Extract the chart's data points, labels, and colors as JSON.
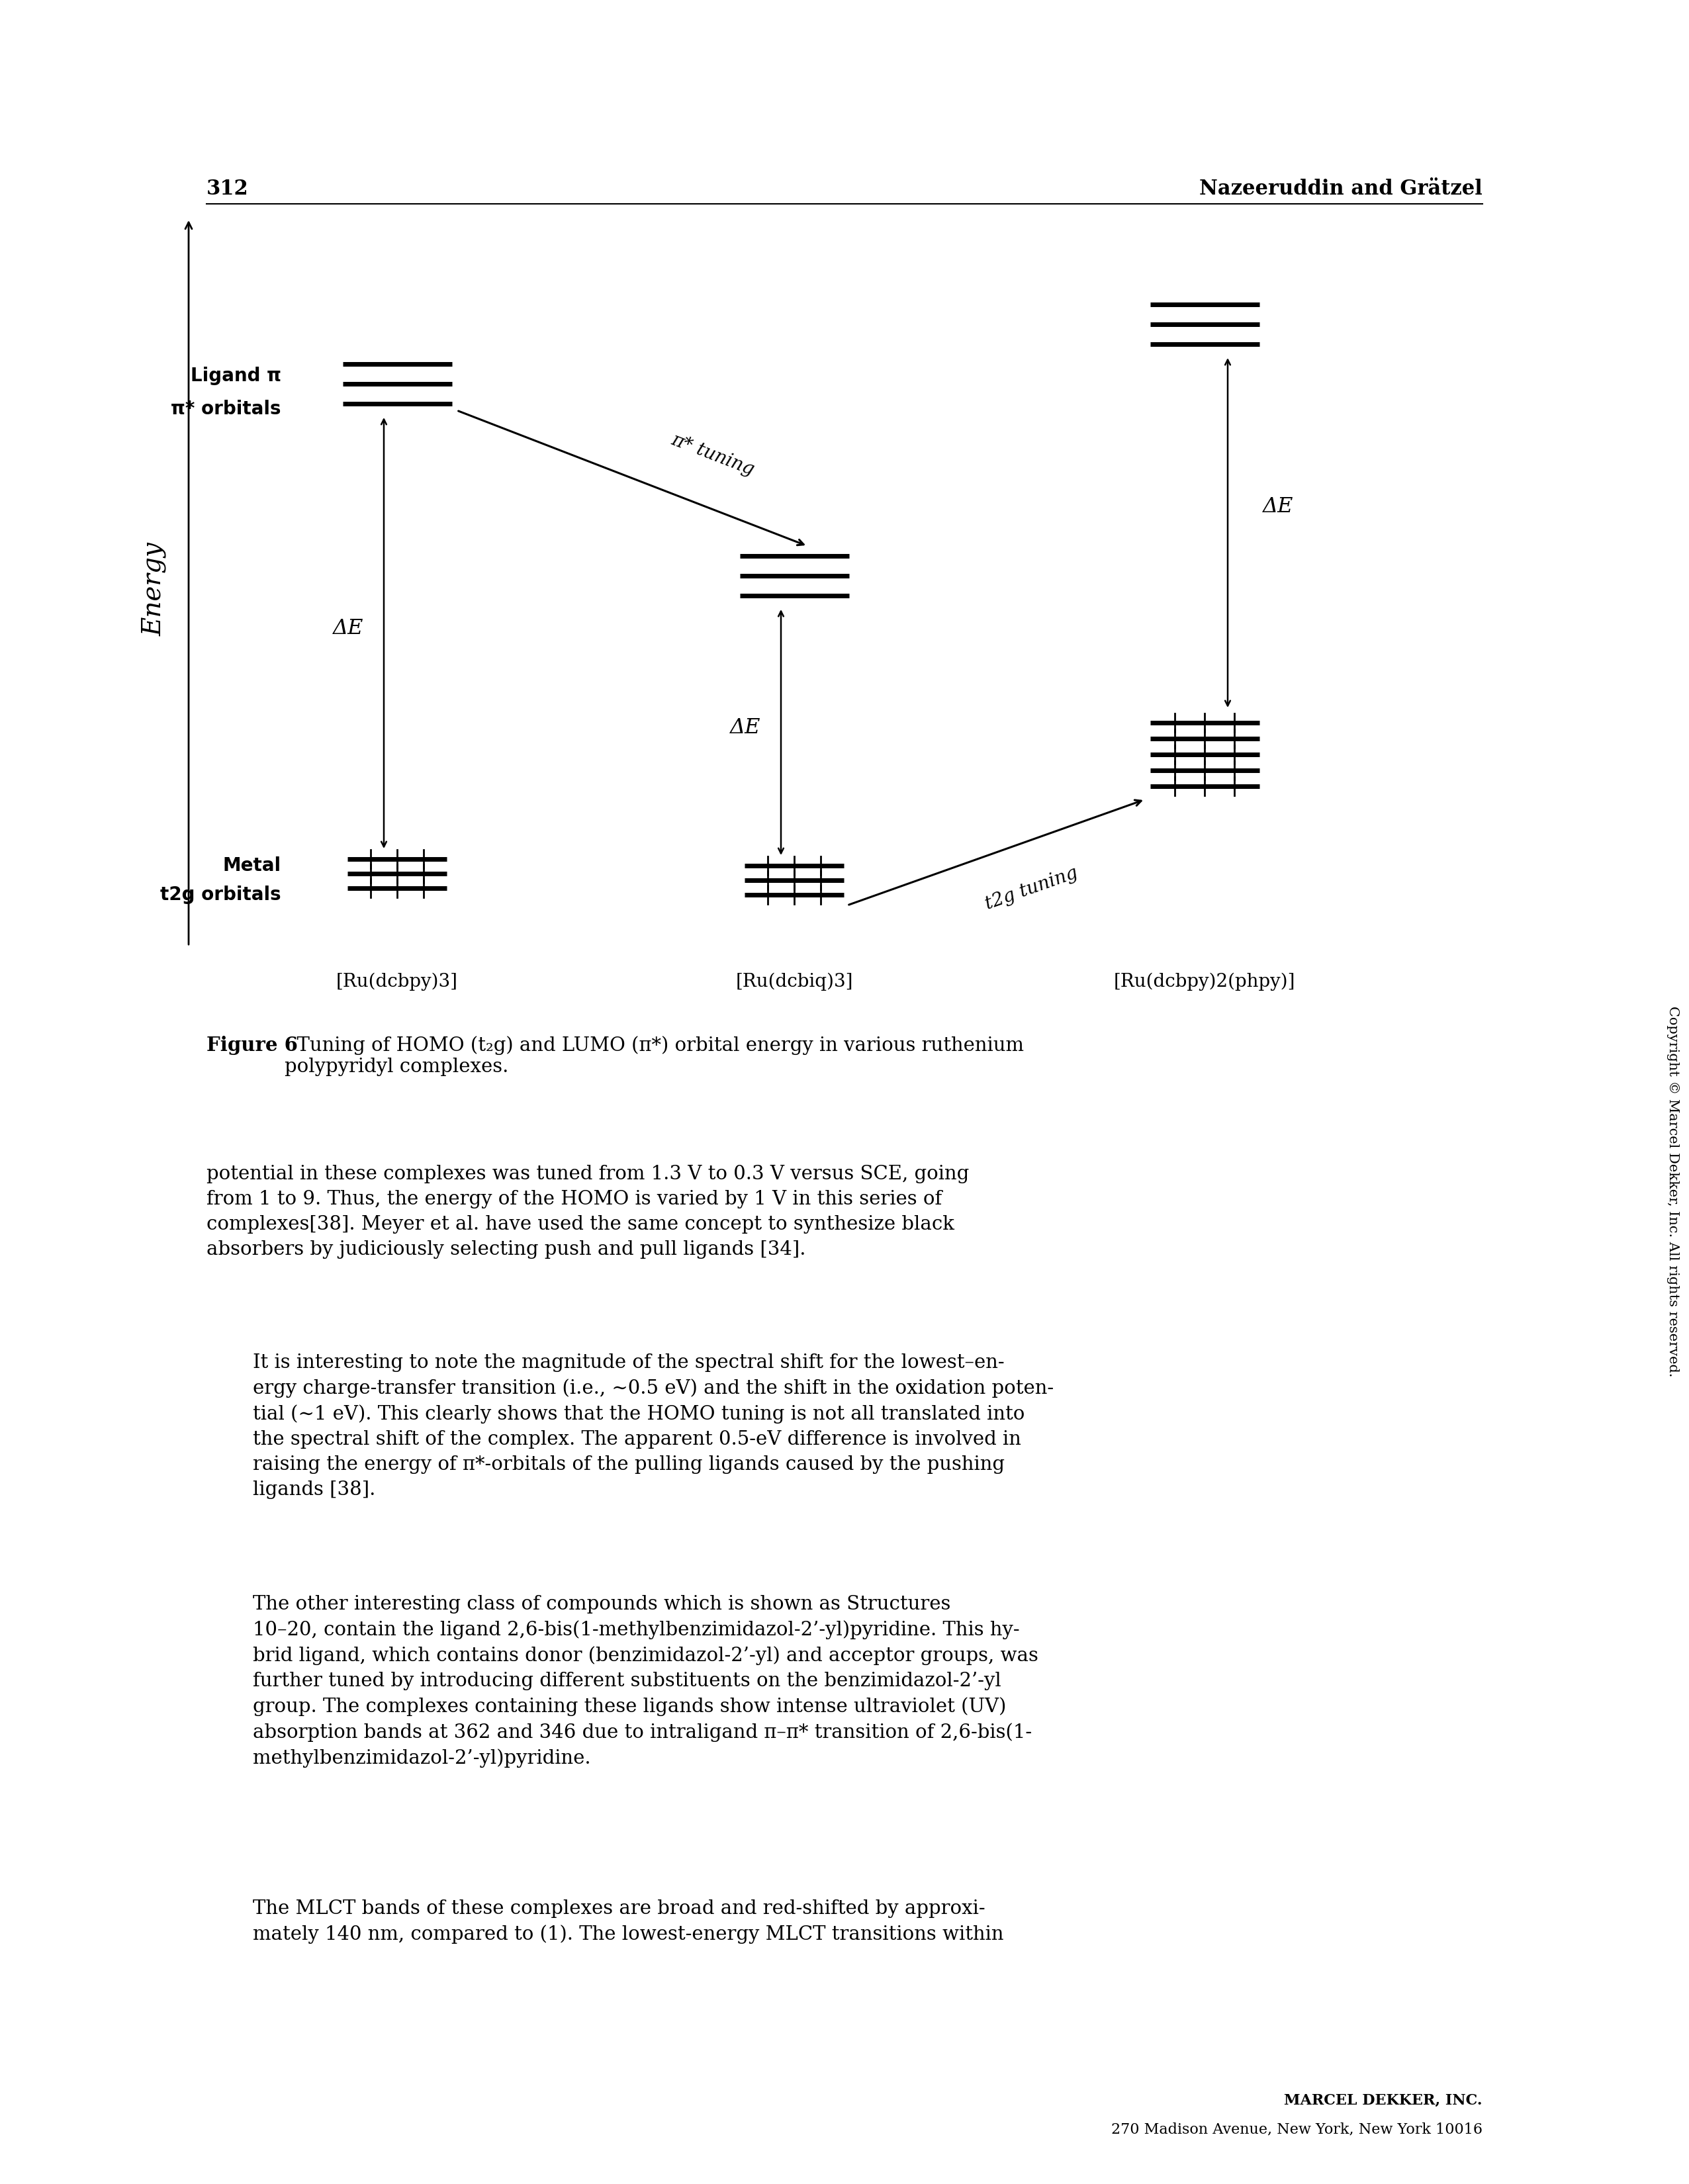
{
  "page_number": "312",
  "header_right": "Nazeeruddin and Grätzel",
  "energy_label": "Energy",
  "col1_label": "[Ru(dcbpy)3]",
  "col2_label": "[Ru(dcbiq)3]",
  "col3_label": "[Ru(dcbpy)2(phpy)]",
  "ligand_label_line1": "Ligand π",
  "ligand_label_line2": "π* orbitals",
  "metal_label_line1": "Metal",
  "metal_label_line2": "t2g orbitals",
  "delta_e_label": "ΔE",
  "pi_tuning_label": "π* tuning",
  "t2g_tuning_label": "t2g tuning",
  "figure_caption_bold": "Figure 6",
  "figure_caption_rest": "   Tuning of HOMO (t2g) and LUMO (π*) orbital energy in various ruthenium\npolypyridyl complexes.",
  "body_paragraphs": [
    "potential in these complexes was tuned from 1.3 V to 0.3 V versus SCE, going\nfrom 1 to 9. Thus, the energy of the HOMO is varied by 1 V in this series of\ncomplexes[38]. Meyer et al. have used the same concept to synthesize black\nabsorbers by judiciously selecting push and pull ligands [34].",
    "It is interesting to note the magnitude of the spectral shift for the lowest–en-\nergy charge-transfer transition (i.e., ∼0.5 eV) and the shift in the oxidation poten-\ntial (∼1 eV). This clearly shows that the HOMO tuning is not all translated into\nthe spectral shift of the complex. The apparent 0.5-eV difference is involved in\nraising the energy of π*-orbitals of the pulling ligands caused by the pushing\nligands [38].",
    "The other interesting class of compounds which is shown as Structures\n10–20, contain the ligand 2,6-bis(1-methylbenzimidazol-2’-yl)pyridine. This hy-\nbrid ligand, which contains donor (benzimidazol-2’-yl) and acceptor groups, was\nfurther tuned by introducing different substituents on the benzimidazol-2’-yl\ngroup. The complexes containing these ligands show intense ultraviolet (UV)\nabsorption bands at 362 and 346 due to intraligand π–π* transition of 2,6-bis(1-\nmethylbenzimidazol-2’-yl)pyridine.",
    "The MLCT bands of these complexes are broad and red-shifted by approxi-\nmately 140 nm, compared to (1). The lowest-energy MLCT transitions within"
  ],
  "footer_company": "MARCEL DEKKER, INC.",
  "footer_address": "270 Madison Avenue, New York, New York 10016",
  "copyright_text": "Copyright © Marcel Dekker, Inc. All rights reserved.",
  "background_color": "#ffffff",
  "text_color": "#000000"
}
